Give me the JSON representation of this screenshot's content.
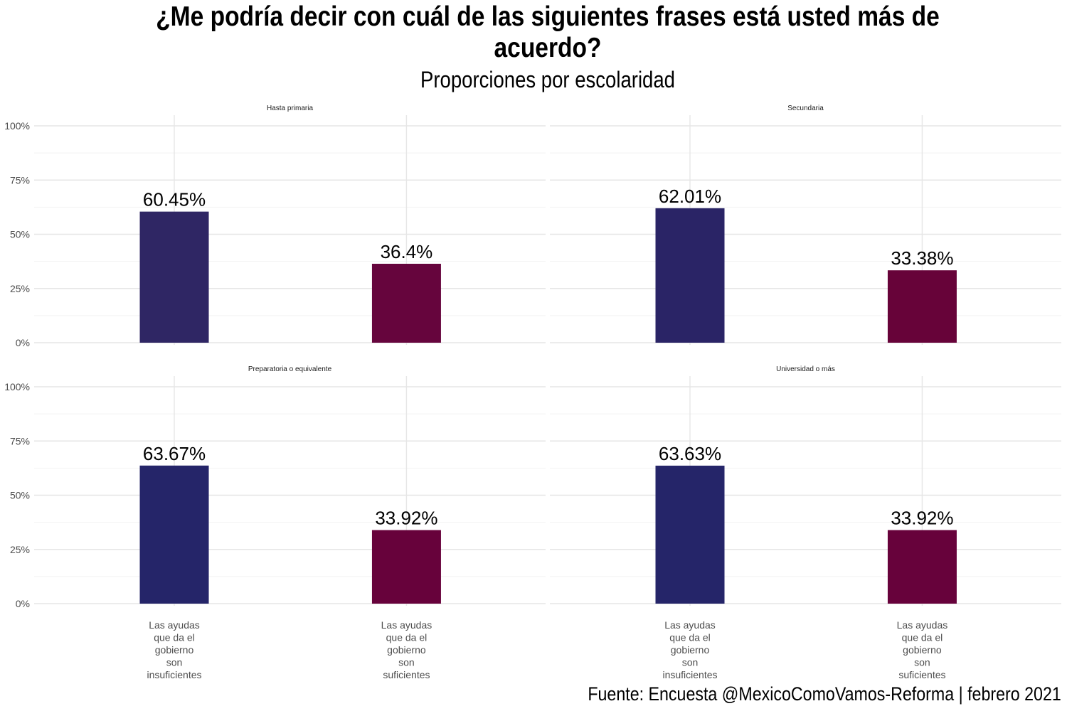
{
  "title_line1": "¿Me podría decir con cuál de las siguientes frases está usted más de",
  "title_line2": "acuerdo?",
  "subtitle": "Proporciones por escolaridad",
  "caption": "Fuente: Encuesta @MexicoComoVamos-Reforma | febrero 2021",
  "chart_data": {
    "type": "bar",
    "facets": [
      {
        "name": "Hasta primaria",
        "values": [
          60.45,
          36.4
        ],
        "labels": [
          "60.45%",
          "36.4%"
        ],
        "colors": [
          "#2f2664",
          "#66053d"
        ]
      },
      {
        "name": "Secundaria",
        "values": [
          62.01,
          33.38
        ],
        "labels": [
          "62.01%",
          "33.38%"
        ],
        "colors": [
          "#2a2466",
          "#670339"
        ]
      },
      {
        "name": "Preparatoria o equivalente",
        "values": [
          63.67,
          33.92
        ],
        "labels": [
          "63.67%",
          "33.92%"
        ],
        "colors": [
          "#252569",
          "#67023b"
        ]
      },
      {
        "name": "Universidad o más",
        "values": [
          63.63,
          33.92
        ],
        "labels": [
          "63.63%",
          "33.92%"
        ],
        "colors": [
          "#252569",
          "#67023b"
        ]
      }
    ],
    "categories": [
      [
        "Las ayudas",
        "que da el",
        "gobierno",
        "son",
        "insuficientes"
      ],
      [
        "Las ayudas",
        "que da el",
        "gobierno",
        "son",
        "suficientes"
      ]
    ],
    "yticks": [
      0,
      25,
      50,
      75,
      100
    ],
    "ytick_labels": [
      "0%",
      "25%",
      "50%",
      "75%",
      "100%"
    ],
    "ylim": [
      0,
      100
    ],
    "grid": true,
    "legend": "none"
  }
}
